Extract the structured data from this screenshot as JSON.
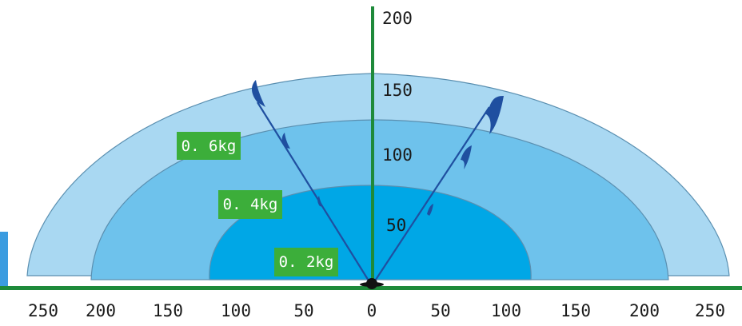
{
  "colors": {
    "outer_zone": "#a9d8f2",
    "middle_zone": "#6ec2ec",
    "inner_zone": "#00a7e6",
    "zone_outline": "#5a8fb0",
    "ground_line": "#1e8a3a",
    "vertical_axis": "#1e8a3a",
    "label_bg": "#3cae3a",
    "trajectory": "#1f4fa0",
    "side_bar": "#3b9ce0",
    "origin_marker": "#111111"
  },
  "zones": [
    {
      "label": "0. 6kg"
    },
    {
      "label": "0. 4kg"
    },
    {
      "label": "0. 2kg"
    }
  ],
  "axis": {
    "vertical_ticks": [
      "200",
      "150",
      "100",
      "50"
    ],
    "horizontal_ticks": [
      "250",
      "200",
      "150",
      "100",
      "50",
      "0",
      "50",
      "100",
      "150",
      "200",
      "250"
    ]
  }
}
